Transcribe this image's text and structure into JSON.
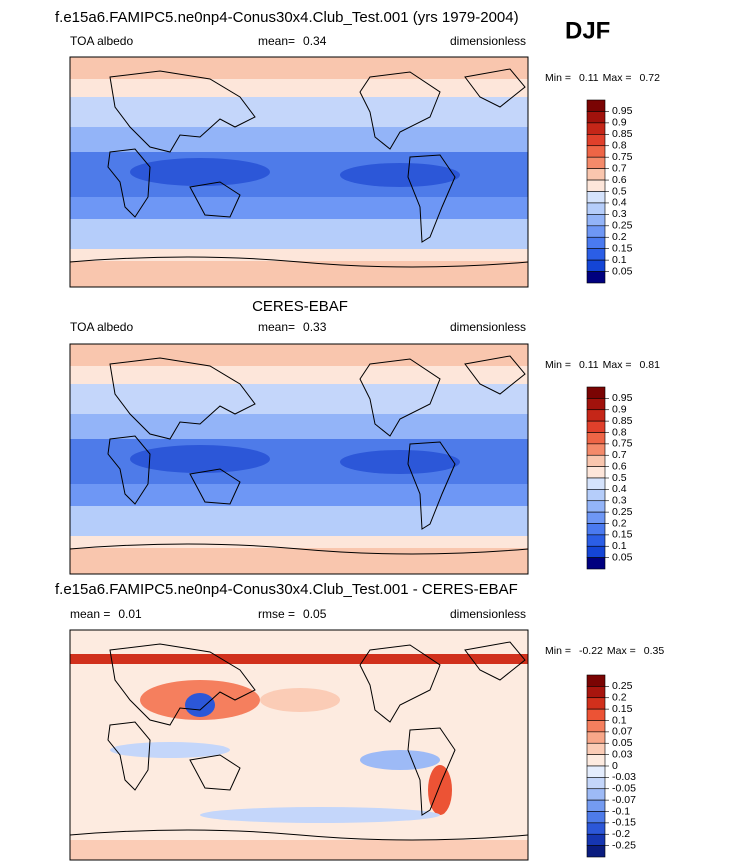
{
  "title": "f.e15a6.FAMIPC5.ne0np4-Conus30x4.Club_Test.001 (yrs 1979-2004)",
  "season": "DJF",
  "panels": [
    {
      "variable": "TOA albedo",
      "mean_label": "mean=",
      "mean": 0.34,
      "units": "dimensionless",
      "min_label": "Min =",
      "min": 0.11,
      "max_label": "Max =",
      "max": 0.72,
      "levels": [
        0.95,
        0.9,
        0.85,
        0.8,
        0.75,
        0.7,
        0.6,
        0.5,
        0.4,
        0.3,
        0.25,
        0.2,
        0.15,
        0.1,
        0.05
      ],
      "colors": [
        "#7a0403",
        "#a1120c",
        "#c52618",
        "#e0402b",
        "#ee6546",
        "#f48a6a",
        "#f9c6ae",
        "#fde6da",
        "#d5e3fc",
        "#b5cdfa",
        "#93b4f8",
        "#6e97f5",
        "#4a7af0",
        "#2b5ee6",
        "#1445d6",
        "#00007f"
      ]
    },
    {
      "heading": "CERES-EBAF",
      "variable": "TOA albedo",
      "mean_label": "mean=",
      "mean": 0.33,
      "units": "dimensionless",
      "min_label": "Min =",
      "min": 0.11,
      "max_label": "Max =",
      "max": 0.81,
      "levels": [
        0.95,
        0.9,
        0.85,
        0.8,
        0.75,
        0.7,
        0.6,
        0.5,
        0.4,
        0.3,
        0.25,
        0.2,
        0.15,
        0.1,
        0.05
      ],
      "colors": [
        "#7a0403",
        "#a1120c",
        "#c52618",
        "#e0402b",
        "#ee6546",
        "#f48a6a",
        "#f9c6ae",
        "#fde6da",
        "#d5e3fc",
        "#b5cdfa",
        "#93b4f8",
        "#6e97f5",
        "#4a7af0",
        "#2b5ee6",
        "#1445d6",
        "#00007f"
      ]
    },
    {
      "heading": "f.e15a6.FAMIPC5.ne0np4-Conus30x4.Club_Test.001 - CERES-EBAF",
      "mean_label": "mean =",
      "mean": 0.01,
      "rmse_label": "rmse =",
      "rmse": 0.05,
      "units": "dimensionless",
      "min_label": "Min =",
      "min": -0.22,
      "max_label": "Max =",
      "max": 0.35,
      "levels": [
        0.25,
        0.2,
        0.15,
        0.1,
        0.07,
        0.05,
        0.03,
        0,
        -0.03,
        -0.05,
        -0.07,
        -0.1,
        -0.15,
        -0.2,
        -0.25
      ],
      "colors": [
        "#7a0403",
        "#a8150e",
        "#d1301c",
        "#ec5335",
        "#f57f5e",
        "#f8a789",
        "#fbccb6",
        "#fdebe0",
        "#e4edfd",
        "#c4d6fa",
        "#9dbaf6",
        "#749bf1",
        "#4e7be9",
        "#2c57d8",
        "#1636b2",
        "#0a1c7f"
      ]
    }
  ]
}
